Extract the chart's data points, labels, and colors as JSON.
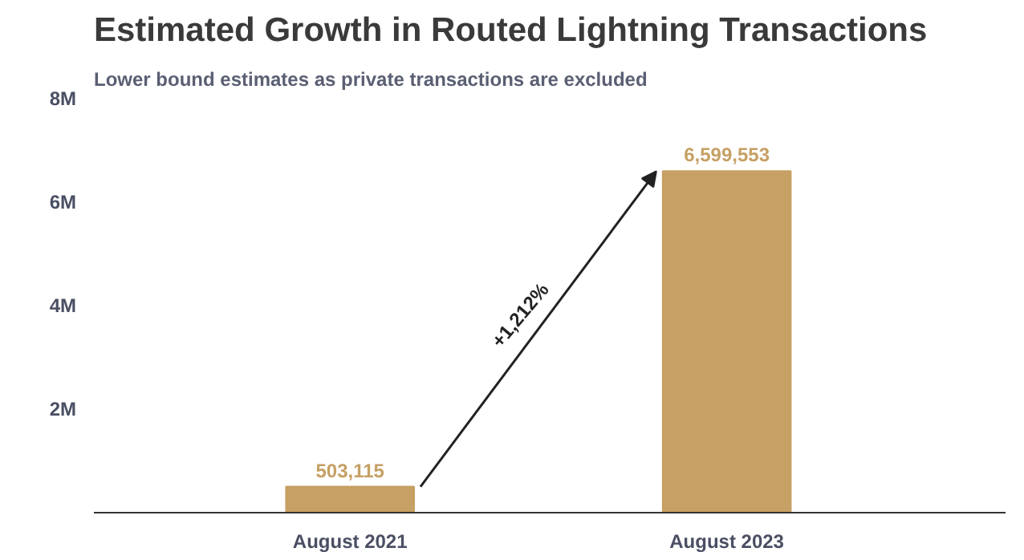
{
  "chart_data": {
    "type": "bar",
    "title": "Estimated Growth in Routed Lightning Transactions",
    "subtitle": "Lower bound estimates as private transactions are excluded",
    "categories": [
      "August 2021",
      "August 2023"
    ],
    "values": [
      503115,
      6599553
    ],
    "color": "#c6a064",
    "value_labels": [
      "503,115",
      "6,599,553"
    ],
    "ylim": [
      0,
      8000000
    ],
    "yticks": [
      {
        "value": 0,
        "label": null
      },
      {
        "value": 2000000,
        "label": "2M"
      },
      {
        "value": 4000000,
        "label": "4M"
      },
      {
        "value": 6000000,
        "label": "6M"
      },
      {
        "value": 8000000,
        "label": "8M"
      }
    ],
    "annotations": [
      "+1,212%"
    ],
    "grid": false
  }
}
